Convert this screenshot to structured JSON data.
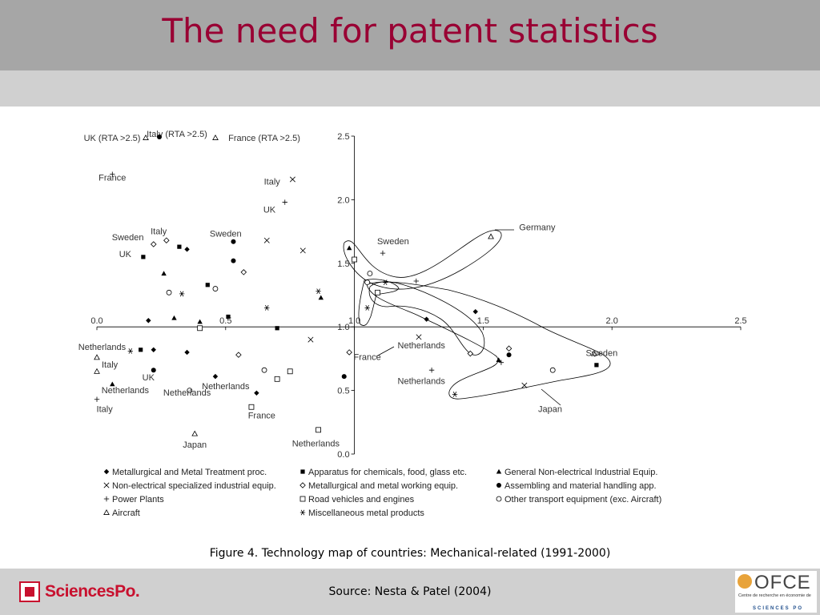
{
  "slide": {
    "title": "The need for patent statistics",
    "caption": "Figure 4. Technology map of countries: Mechanical-related (1991-2000)",
    "source": "Source: Nesta & Patel (2004)",
    "brand_left": "SciencesPo.",
    "brand_right": "OFCE",
    "brand_right_small": "Centre de recherche en économie de",
    "brand_right_sub": "SCIENCES PO",
    "accent_color": "#990033"
  },
  "chart_data": {
    "type": "scatter",
    "xlim": [
      0.0,
      2.5
    ],
    "ylim": [
      0.0,
      2.5
    ],
    "xticks": [
      "0.0",
      "0.5",
      "1.0",
      "1.5",
      "2.0",
      "2.5"
    ],
    "yticks": [
      "0.0",
      "0.5",
      "1.0",
      "1.5",
      "2.0",
      "2.5"
    ],
    "out_of_range_labels": [
      {
        "text": "UK (RTA >2.5)",
        "marker": "aircraft"
      },
      {
        "text": "Italy (RTA >2.5)",
        "marker": "assembling"
      },
      {
        "text": "France (RTA >2.5)",
        "marker": "aircraft"
      }
    ],
    "series": [
      {
        "name": "Metallurgical and Metal Treatment proc.",
        "marker": "diamond-filled",
        "x": [
          0.2,
          0.22,
          0.35,
          0.35,
          0.46,
          0.62,
          1.28,
          1.47
        ],
        "y": [
          1.05,
          0.82,
          1.61,
          0.8,
          0.61,
          0.48,
          1.06,
          1.12
        ]
      },
      {
        "name": "Apparatus for chemicals, food, glass etc.",
        "marker": "square-filled",
        "x": [
          0.18,
          0.32,
          0.43,
          0.51,
          0.7,
          0.17,
          1.94
        ],
        "y": [
          1.55,
          1.63,
          1.33,
          1.08,
          0.99,
          0.82,
          0.7
        ]
      },
      {
        "name": "General Non-electrical Industrial Equip.",
        "marker": "triangle-filled",
        "x": [
          0.26,
          0.3,
          0.4,
          0.87,
          0.98,
          1.56,
          0.06
        ],
        "y": [
          1.42,
          1.07,
          1.04,
          1.23,
          1.62,
          0.74,
          0.55
        ]
      },
      {
        "name": "Non-electrical specialized industrial equip.",
        "marker": "x",
        "x": [
          0.76,
          0.66,
          0.8,
          0.83,
          1.25,
          1.66
        ],
        "y": [
          2.16,
          1.68,
          1.6,
          0.9,
          0.92,
          0.54
        ]
      },
      {
        "name": "Metallurgical and metal working equip.",
        "marker": "diamond-open",
        "x": [
          0.22,
          0.27,
          0.57,
          0.55,
          0.98,
          1.6,
          1.45
        ],
        "y": [
          1.65,
          1.68,
          1.43,
          0.78,
          0.8,
          0.83,
          0.79
        ]
      },
      {
        "name": "Assembling and material handling app.",
        "marker": "circle-filled",
        "x": [
          0.53,
          0.53,
          0.22,
          0.96,
          1.6
        ],
        "y": [
          1.67,
          1.52,
          0.66,
          0.61,
          0.78
        ]
      },
      {
        "name": "Power Plants",
        "marker": "plus",
        "x": [
          0.06,
          0.73,
          1.11,
          1.24,
          1.57,
          1.3,
          0.0
        ],
        "y": [
          2.2,
          1.98,
          1.58,
          1.36,
          0.72,
          0.66,
          0.43
        ]
      },
      {
        "name": "Road vehicles and engines",
        "marker": "square-open",
        "x": [
          1.0,
          1.09,
          0.4,
          0.75,
          0.7,
          0.6,
          0.86
        ],
        "y": [
          1.53,
          1.27,
          0.99,
          0.65,
          0.59,
          0.37,
          0.19
        ]
      },
      {
        "name": "Other transport equipment (exc. Aircraft)",
        "marker": "circle-open",
        "x": [
          0.28,
          0.46,
          1.06,
          1.05,
          0.65,
          0.36,
          1.77
        ],
        "y": [
          1.27,
          1.3,
          1.42,
          1.35,
          0.66,
          0.5,
          0.66
        ]
      },
      {
        "name": "Aircraft",
        "marker": "triangle-open",
        "x": [
          1.53,
          1.93,
          0.0,
          0.0,
          0.38
        ],
        "y": [
          1.71,
          0.79,
          0.76,
          0.65,
          0.16
        ]
      },
      {
        "name": "Miscellaneous metal products",
        "marker": "asterisk",
        "x": [
          0.33,
          0.66,
          0.86,
          1.05,
          1.12,
          1.39,
          0.13
        ],
        "y": [
          1.26,
          1.15,
          1.28,
          1.15,
          1.35,
          0.47,
          0.81
        ]
      }
    ],
    "point_labels": [
      {
        "text": "France",
        "x": 0.06,
        "y": 2.15
      },
      {
        "text": "Italy",
        "x": 0.68,
        "y": 2.12
      },
      {
        "text": "UK",
        "x": 0.67,
        "y": 1.9
      },
      {
        "text": "Sweden",
        "x": 0.12,
        "y": 1.68
      },
      {
        "text": "Italy",
        "x": 0.24,
        "y": 1.73
      },
      {
        "text": "UK",
        "x": 0.11,
        "y": 1.55
      },
      {
        "text": "Sweden",
        "x": 0.5,
        "y": 1.71
      },
      {
        "text": "Sweden",
        "x": 1.15,
        "y": 1.65
      },
      {
        "text": "Germany",
        "x": 1.71,
        "y": 1.76
      },
      {
        "text": "Netherlands",
        "x": 0.02,
        "y": 0.82
      },
      {
        "text": "Italy",
        "x": 0.05,
        "y": 0.68
      },
      {
        "text": "UK",
        "x": 0.2,
        "y": 0.58
      },
      {
        "text": "Netherlands",
        "x": 0.11,
        "y": 0.48
      },
      {
        "text": "Italy",
        "x": 0.03,
        "y": 0.33
      },
      {
        "text": "Netherlands",
        "x": 0.35,
        "y": 0.46
      },
      {
        "text": "Netherlands",
        "x": 0.5,
        "y": 0.51
      },
      {
        "text": "France",
        "x": 0.64,
        "y": 0.28
      },
      {
        "text": "Japan",
        "x": 0.38,
        "y": 0.05
      },
      {
        "text": "Netherlands",
        "x": 0.85,
        "y": 0.06
      },
      {
        "text": "France",
        "x": 1.05,
        "y": 0.74
      },
      {
        "text": "Netherlands",
        "x": 1.26,
        "y": 0.83
      },
      {
        "text": "Netherlands",
        "x": 1.26,
        "y": 0.55
      },
      {
        "text": "Sweden",
        "x": 1.96,
        "y": 0.77
      },
      {
        "text": "Japan",
        "x": 1.76,
        "y": 0.33
      }
    ],
    "grid": false,
    "legend_position": "bottom"
  }
}
